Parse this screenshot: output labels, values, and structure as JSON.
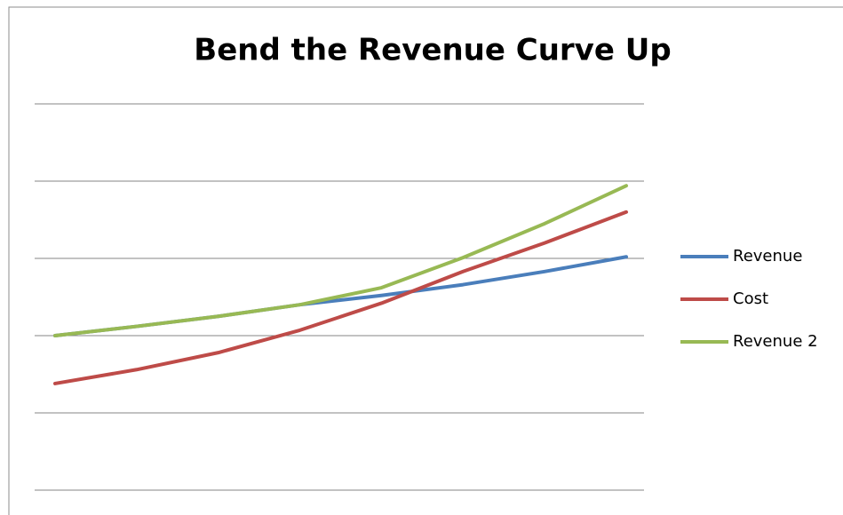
{
  "chart_data": {
    "type": "line",
    "title": "Bend the Revenue Curve Up",
    "categories": [
      null,
      null,
      null,
      null,
      null,
      null,
      null,
      null
    ],
    "series": [
      {
        "name": "Revenue",
        "color": "#4a7ebb",
        "values": [
          2.0,
          2.12,
          2.25,
          2.4,
          2.52,
          2.66,
          2.83,
          3.02
        ]
      },
      {
        "name": "Cost",
        "color": "#be4b48",
        "values": [
          1.38,
          1.56,
          1.78,
          2.07,
          2.42,
          2.83,
          3.2,
          3.6
        ]
      },
      {
        "name": "Revenue 2",
        "color": "#98b954",
        "values": [
          2.0,
          2.12,
          2.25,
          2.4,
          2.62,
          3.01,
          3.45,
          3.94
        ]
      }
    ],
    "ylim": [
      0,
      5
    ],
    "yticks": [
      0,
      1,
      2,
      3,
      4,
      5
    ],
    "grid": true,
    "legend": "right"
  }
}
